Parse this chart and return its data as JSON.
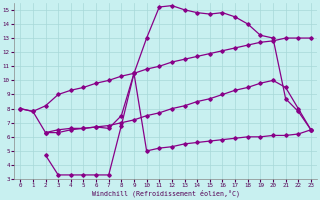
{
  "xlabel": "Windchill (Refroidissement éolien,°C)",
  "bg_color": "#c8f0f0",
  "grid_color": "#a8d8d8",
  "line_color": "#880088",
  "xlim": [
    -0.5,
    23.5
  ],
  "ylim": [
    3,
    15.5
  ],
  "xticks": [
    0,
    1,
    2,
    3,
    4,
    5,
    6,
    7,
    8,
    9,
    10,
    11,
    12,
    13,
    14,
    15,
    16,
    17,
    18,
    19,
    20,
    21,
    22,
    23
  ],
  "yticks": [
    3,
    4,
    5,
    6,
    7,
    8,
    9,
    10,
    11,
    12,
    13,
    14,
    15
  ],
  "line_top_x": [
    0,
    1,
    2,
    3,
    4,
    5,
    6,
    7,
    8,
    9,
    10,
    11,
    12,
    13,
    14,
    15,
    16,
    17,
    18,
    19,
    20,
    21,
    22,
    23
  ],
  "line_top_y": [
    8.0,
    7.8,
    8.2,
    9.0,
    9.3,
    9.5,
    9.8,
    10.0,
    10.3,
    10.5,
    10.8,
    11.0,
    11.3,
    11.5,
    11.7,
    11.9,
    12.1,
    12.3,
    12.5,
    12.7,
    12.8,
    13.0,
    13.0,
    13.0
  ],
  "line_mid_x": [
    0,
    1,
    2,
    3,
    4,
    5,
    6,
    7,
    8,
    9,
    10,
    11,
    12,
    13,
    14,
    15,
    16,
    17,
    18,
    19,
    20,
    21,
    22,
    23
  ],
  "line_mid_y": [
    8.0,
    7.8,
    6.3,
    6.3,
    6.5,
    6.6,
    6.7,
    6.8,
    7.0,
    7.2,
    7.5,
    7.7,
    8.0,
    8.2,
    8.5,
    8.7,
    9.0,
    9.3,
    9.5,
    9.8,
    10.0,
    9.5,
    8.0,
    6.5
  ],
  "line_peak_x": [
    2,
    3,
    4,
    5,
    6,
    7,
    8,
    9,
    10,
    11,
    12,
    13,
    14,
    15,
    16,
    17,
    18,
    19,
    20,
    21,
    22,
    23
  ],
  "line_peak_y": [
    6.3,
    6.5,
    6.6,
    6.6,
    6.7,
    6.6,
    7.5,
    10.5,
    13.0,
    15.2,
    15.3,
    15.0,
    14.8,
    14.7,
    14.8,
    14.5,
    14.0,
    13.2,
    13.0,
    8.7,
    7.8,
    6.5
  ],
  "line_bot_x": [
    2,
    3,
    4,
    5,
    6,
    7,
    8,
    9,
    10,
    11,
    12,
    13,
    14,
    15,
    16,
    17,
    18,
    19,
    20,
    21,
    22,
    23
  ],
  "line_bot_y": [
    4.7,
    3.3,
    3.3,
    3.3,
    3.3,
    3.3,
    6.8,
    10.5,
    5.0,
    5.2,
    5.3,
    5.5,
    5.6,
    5.7,
    5.8,
    5.9,
    6.0,
    6.0,
    6.1,
    6.1,
    6.2,
    6.5
  ]
}
